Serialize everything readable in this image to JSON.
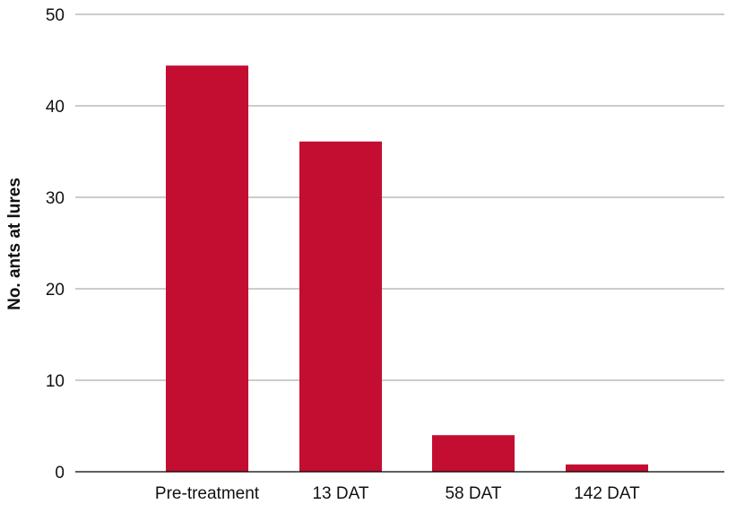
{
  "chart_data": {
    "type": "bar",
    "title": "",
    "xlabel": "",
    "ylabel": "No. ants at lures",
    "categories": [
      "Pre-treatment",
      "13 DAT",
      "58 DAT",
      "142 DAT"
    ],
    "values": [
      44.4,
      36.1,
      4.0,
      0.8
    ],
    "ylim": [
      0,
      50
    ],
    "yticks": [
      0,
      10,
      20,
      30,
      40,
      50
    ],
    "grid": true,
    "legend": "none",
    "colors": {
      "bar": "#C30E32",
      "grid": "#9a9a9a",
      "axis": "#000000"
    }
  }
}
